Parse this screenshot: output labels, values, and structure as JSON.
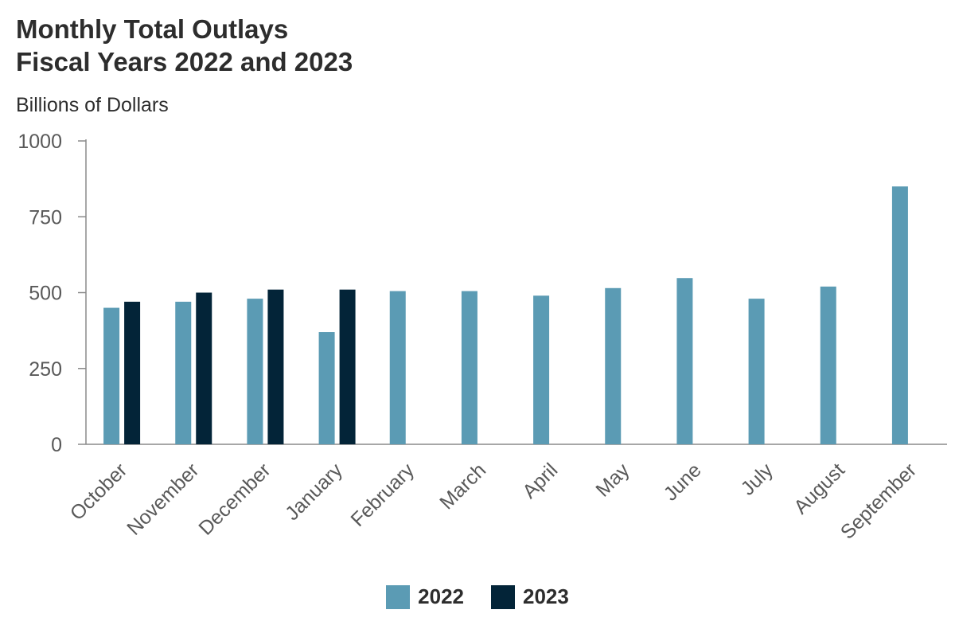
{
  "chart_data": {
    "type": "bar",
    "title_line1": "Monthly Total Outlays",
    "title_line2": "Fiscal Years 2022 and 2023",
    "ylabel": "Billions of Dollars",
    "xlabel": "",
    "ylim": [
      0,
      1000
    ],
    "yticks": [
      0,
      250,
      500,
      750,
      1000
    ],
    "categories": [
      "October",
      "November",
      "December",
      "January",
      "February",
      "March",
      "April",
      "May",
      "June",
      "July",
      "August",
      "September"
    ],
    "series": [
      {
        "name": "2022",
        "color": "#5b9bb4",
        "values": [
          450,
          470,
          480,
          370,
          505,
          505,
          490,
          515,
          548,
          480,
          520,
          850
        ]
      },
      {
        "name": "2023",
        "color": "#032438",
        "values": [
          470,
          500,
          510,
          510,
          null,
          null,
          null,
          null,
          null,
          null,
          null,
          null
        ]
      }
    ],
    "legend_position": "bottom-center",
    "grid": false
  }
}
